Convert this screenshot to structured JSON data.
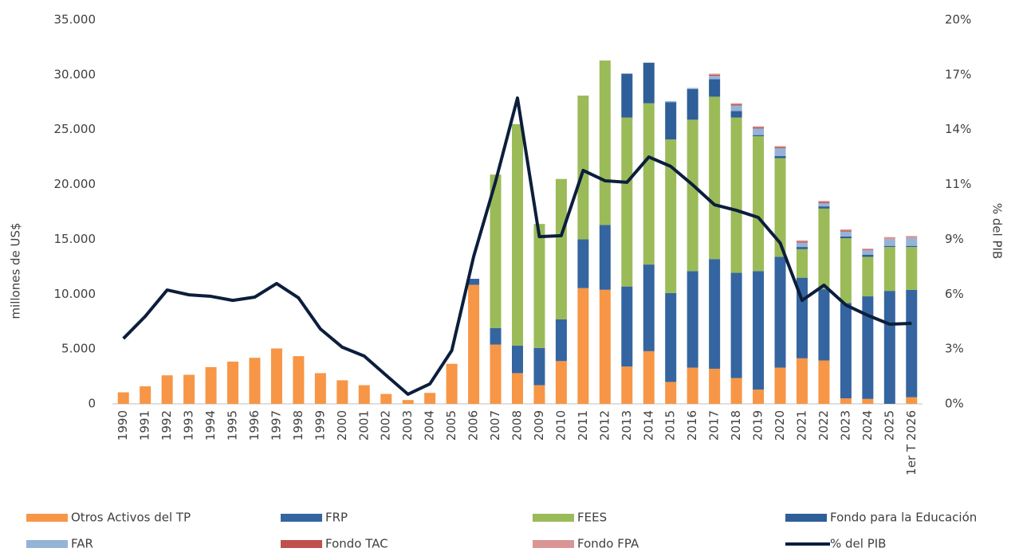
{
  "chart_data": {
    "type": "bar",
    "stacked": true,
    "ylabel": "millones de US$",
    "y2label": "% del PIB",
    "categories": [
      "1990",
      "1991",
      "1992",
      "1993",
      "1994",
      "1995",
      "1996",
      "1997",
      "1998",
      "1999",
      "2000",
      "2001",
      "2002",
      "2003",
      "2004",
      "2005",
      "2006",
      "2007",
      "2008",
      "2009",
      "2010",
      "2011",
      "2012",
      "2013",
      "2014",
      "2015",
      "2016",
      "2017",
      "2018",
      "2019",
      "2020",
      "2021",
      "2022",
      "2023",
      "2024",
      "2025",
      "1er T 2026"
    ],
    "ylim": [
      0,
      35000
    ],
    "yticks": [
      0,
      {
        "value": 5000,
        "label": "5.000"
      },
      {
        "value": 10000,
        "label": "10.000"
      },
      {
        "value": 15000,
        "label": "15.000"
      },
      {
        "value": 20000,
        "label": "20.000"
      },
      {
        "value": 25000,
        "label": "25.000"
      },
      {
        "value": 30000,
        "label": "30.000"
      },
      {
        "value": 35000,
        "label": "35.000"
      }
    ],
    "y2lim": [
      0,
      20
    ],
    "y2ticks": [
      {
        "value": 0,
        "label": "0%"
      },
      {
        "value": 2.857,
        "label": "3%"
      },
      {
        "value": 5.714,
        "label": "6%"
      },
      {
        "value": 8.571,
        "label": "9%"
      },
      {
        "value": 11.429,
        "label": "11%"
      },
      {
        "value": 14.286,
        "label": "14%"
      },
      {
        "value": 17.143,
        "label": "17%"
      },
      {
        "value": 20,
        "label": "20%"
      }
    ],
    "series": [
      {
        "name": "Otros Activos del TP",
        "color": "#f79646",
        "values": [
          1050,
          1600,
          2600,
          2650,
          3350,
          3850,
          4200,
          5050,
          4350,
          2800,
          2150,
          1700,
          900,
          350,
          1000,
          3650,
          10850,
          5400,
          2800,
          1700,
          3900,
          10550,
          10400,
          3400,
          4800,
          2000,
          3300,
          3200,
          2350,
          1300,
          3300,
          4150,
          3950,
          500,
          450,
          null,
          600
        ]
      },
      {
        "name": "FRP",
        "color": "#3565a0",
        "values": [
          null,
          null,
          null,
          null,
          null,
          null,
          null,
          null,
          null,
          null,
          null,
          null,
          null,
          null,
          null,
          null,
          550,
          1500,
          2500,
          3400,
          3800,
          4450,
          5900,
          7300,
          7900,
          8100,
          8800,
          10000,
          9600,
          10800,
          10100,
          7350,
          6500,
          8700,
          9350,
          10300,
          9800
        ]
      },
      {
        "name": "FEES",
        "color": "#9bbb59",
        "values": [
          null,
          null,
          null,
          null,
          null,
          null,
          null,
          null,
          null,
          null,
          null,
          null,
          null,
          null,
          null,
          null,
          null,
          14000,
          20200,
          11300,
          12800,
          13100,
          15000,
          15400,
          14700,
          14000,
          13800,
          14800,
          14150,
          12300,
          9000,
          2600,
          7350,
          5900,
          3600,
          4000,
          3900
        ]
      },
      {
        "name": "Fondo para la Educación",
        "color": "#2f5f98",
        "values": [
          null,
          null,
          null,
          null,
          null,
          null,
          null,
          null,
          null,
          null,
          null,
          null,
          null,
          null,
          null,
          null,
          null,
          null,
          null,
          null,
          null,
          null,
          null,
          4000,
          3700,
          3400,
          2800,
          1600,
          600,
          100,
          200,
          200,
          200,
          150,
          200,
          100,
          100
        ]
      },
      {
        "name": "FAR",
        "color": "#95b3d7",
        "values": [
          null,
          null,
          null,
          null,
          null,
          null,
          null,
          null,
          null,
          null,
          null,
          null,
          null,
          null,
          null,
          null,
          null,
          null,
          null,
          null,
          null,
          null,
          null,
          null,
          null,
          100,
          100,
          300,
          500,
          600,
          700,
          400,
          300,
          450,
          400,
          600,
          700
        ]
      },
      {
        "name": "Fondo TAC",
        "color": "#c0504d",
        "values": [
          null,
          null,
          null,
          null,
          null,
          null,
          null,
          null,
          null,
          null,
          null,
          null,
          null,
          null,
          null,
          null,
          null,
          null,
          null,
          null,
          null,
          null,
          null,
          null,
          null,
          null,
          null,
          100,
          100,
          100,
          100,
          100,
          100,
          100,
          50,
          null,
          null
        ]
      },
      {
        "name": "Fondo FPA",
        "color": "#d99694",
        "values": [
          null,
          null,
          null,
          null,
          null,
          null,
          null,
          null,
          null,
          null,
          null,
          null,
          null,
          null,
          null,
          null,
          null,
          null,
          null,
          null,
          null,
          null,
          null,
          null,
          null,
          null,
          null,
          100,
          100,
          100,
          100,
          100,
          100,
          100,
          100,
          200,
          200
        ]
      },
      {
        "name": "% del PIB",
        "type": "line",
        "axis": "y2",
        "color": "#0c1e3c",
        "values": [
          3.4,
          4.56,
          5.93,
          5.68,
          5.6,
          5.39,
          5.56,
          6.27,
          5.52,
          3.9,
          2.95,
          2.49,
          1.49,
          0.5,
          1.04,
          2.78,
          7.68,
          11.58,
          15.93,
          8.71,
          8.76,
          12.16,
          11.62,
          11.54,
          12.86,
          12.37,
          11.41,
          10.37,
          10.08,
          9.71,
          8.38,
          5.39,
          6.18,
          5.15,
          4.61,
          4.15,
          4.19
        ]
      }
    ]
  }
}
